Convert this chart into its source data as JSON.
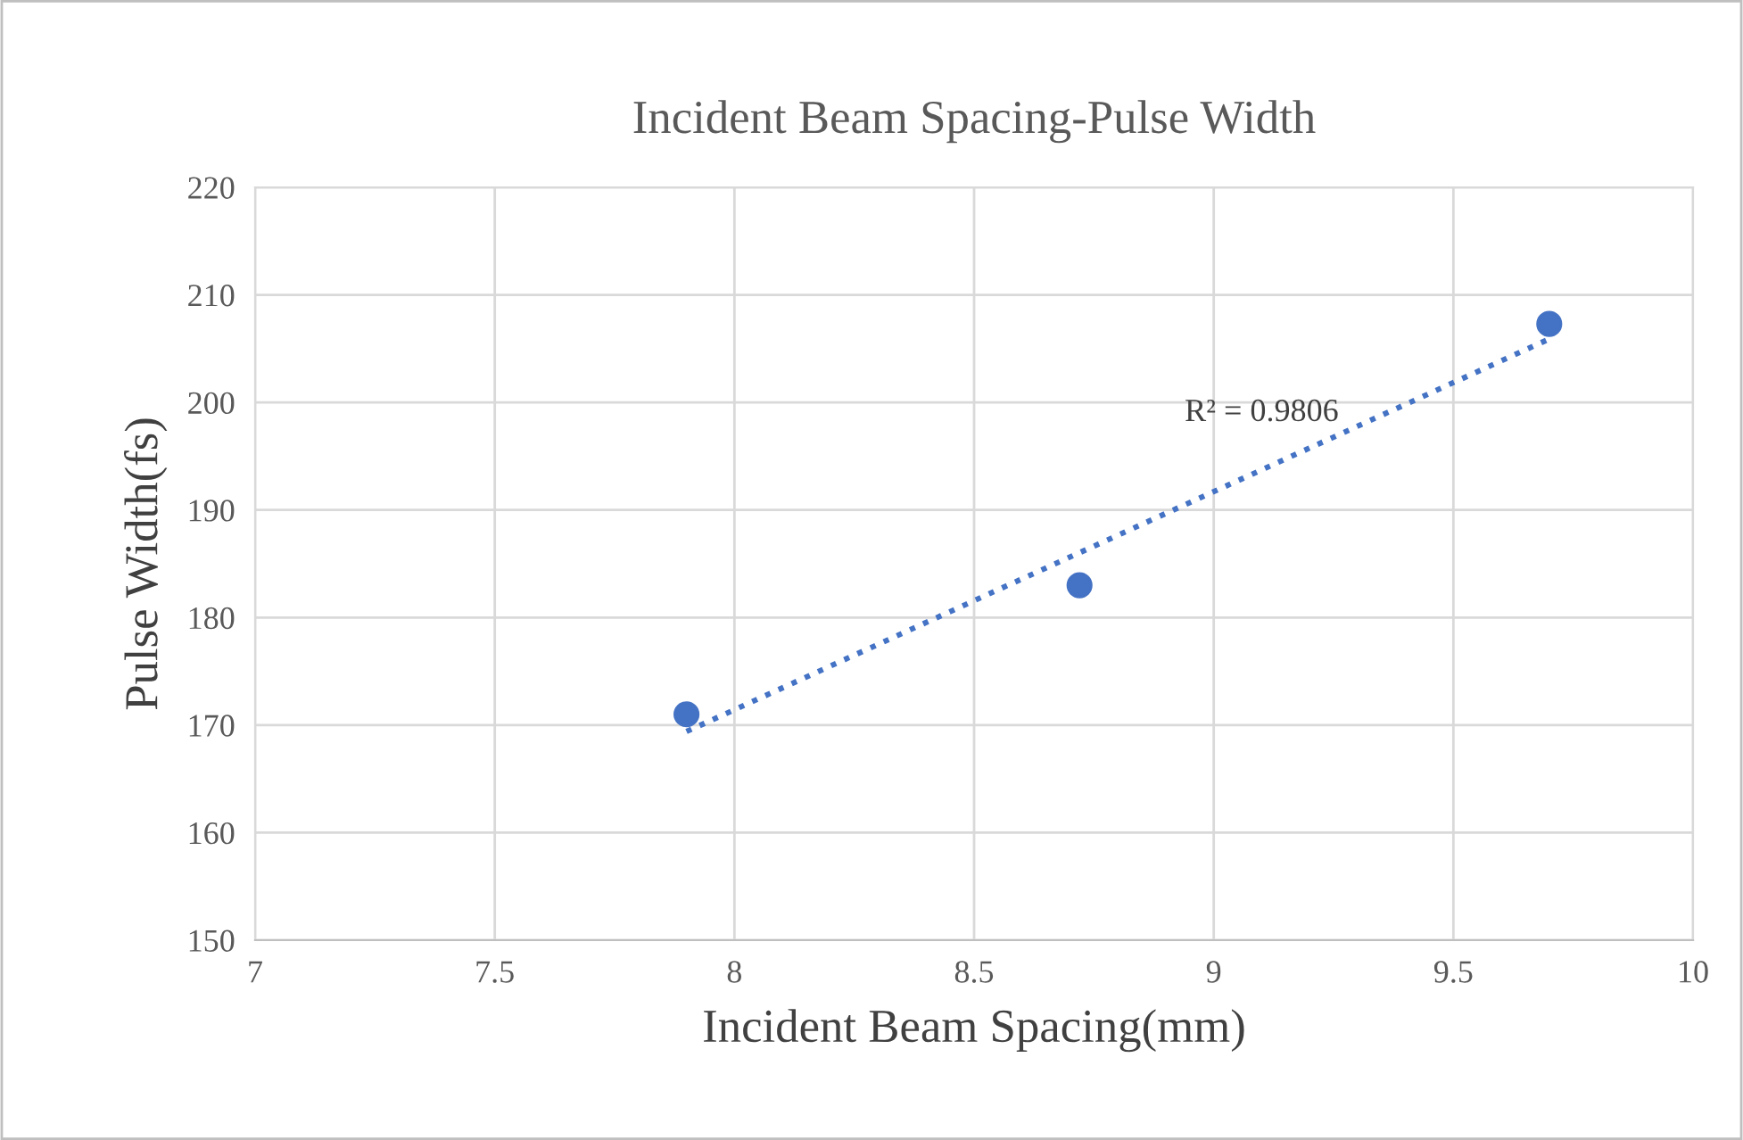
{
  "chart_data": {
    "type": "scatter",
    "title": "Incident Beam Spacing-Pulse Width",
    "xlabel": "Incident Beam Spacing(mm)",
    "ylabel": "Pulse Width(fs)",
    "series": [
      {
        "color": "#4472c4",
        "x": [
          7.9,
          8.72,
          9.7
        ],
        "values": [
          171,
          183,
          207.3
        ],
        "marker": "circle"
      },
      {
        "type": "line",
        "color": "#4472c4",
        "x": [
          7.9,
          9.7
        ],
        "values": [
          169.4,
          205.9
        ],
        "line_style": "dotted",
        "marker": "none"
      }
    ],
    "annotations": [
      "R² = 0.9806"
    ],
    "xlim": [
      7,
      10
    ],
    "xticks": [
      7,
      7.5,
      8,
      8.5,
      9,
      9.5,
      10
    ],
    "ylim": [
      150,
      220
    ],
    "yticks": [
      150,
      160,
      170,
      180,
      190,
      200,
      210,
      220
    ],
    "grid": true,
    "legend": false
  }
}
